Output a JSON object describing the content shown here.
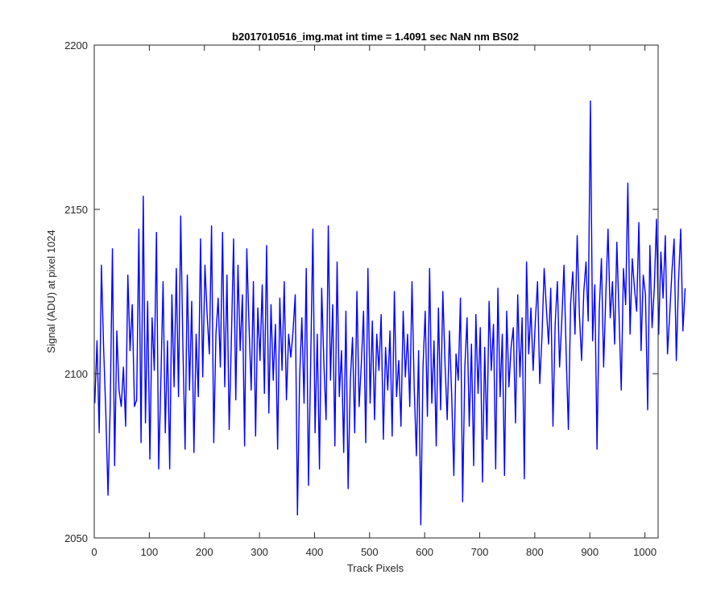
{
  "chart_data": {
    "type": "line",
    "title": "b2017010516_img.mat int time = 1.4091 sec  NaN nm BS02",
    "xlabel": "Track Pixels",
    "ylabel": "Signal (ADU) at pixel 1024",
    "xlim": [
      0,
      1024
    ],
    "ylim": [
      2050,
      2200
    ],
    "xticks": [
      0,
      100,
      200,
      300,
      400,
      500,
      600,
      700,
      800,
      900,
      1000
    ],
    "yticks": [
      2050,
      2100,
      2150,
      2200
    ],
    "xtick_labels": [
      "0",
      "100",
      "200",
      "300",
      "400",
      "500",
      "600",
      "700",
      "800",
      "900",
      "1000"
    ],
    "ytick_labels": [
      "2050",
      "2100",
      "2150",
      "2200"
    ],
    "grid": false,
    "line_color": "#0000ff",
    "series": [
      {
        "x_start": 1,
        "x_step": 4,
        "values": [
          2091,
          2110,
          2082,
          2133,
          2108,
          2088,
          2063,
          2090,
          2138,
          2072,
          2113,
          2095,
          2090,
          2102,
          2084,
          2130,
          2107,
          2121,
          2090,
          2092,
          2144,
          2079,
          2154,
          2085,
          2122,
          2074,
          2117,
          2101,
          2143,
          2071,
          2098,
          2128,
          2082,
          2110,
          2071,
          2124,
          2096,
          2132,
          2093,
          2148,
          2108,
          2077,
          2130,
          2095,
          2122,
          2076,
          2112,
          2093,
          2141,
          2099,
          2133,
          2118,
          2106,
          2145,
          2079,
          2112,
          2123,
          2102,
          2143,
          2096,
          2130,
          2083,
          2110,
          2141,
          2092,
          2133,
          2107,
          2124,
          2078,
          2138,
          2115,
          2095,
          2128,
          2081,
          2120,
          2104,
          2127,
          2094,
          2139,
          2088,
          2121,
          2098,
          2115,
          2077,
          2123,
          2101,
          2128,
          2092,
          2112,
          2105,
          2113,
          2124,
          2057,
          2099,
          2117,
          2091,
          2132,
          2066,
          2103,
          2144,
          2082,
          2112,
          2071,
          2126,
          2103,
          2086,
          2145,
          2098,
          2121,
          2078,
          2134,
          2093,
          2107,
          2076,
          2119,
          2065,
          2098,
          2111,
          2082,
          2125,
          2090,
          2103,
          2119,
          2079,
          2132,
          2091,
          2116,
          2086,
          2112,
          2101,
          2118,
          2080,
          2108,
          2095,
          2113,
          2081,
          2125,
          2093,
          2104,
          2084,
          2119,
          2099,
          2112,
          2090,
          2128,
          2096,
          2075,
          2107,
          2054,
          2102,
          2119,
          2087,
          2132,
          2091,
          2110,
          2078,
          2120,
          2089,
          2125,
          2103,
          2086,
          2113,
          2094,
          2069,
          2106,
          2098,
          2123,
          2061,
          2102,
          2117,
          2084,
          2109,
          2072,
          2118,
          2094,
          2114,
          2067,
          2108,
          2080,
          2122,
          2101,
          2115,
          2071,
          2126,
          2093,
          2112,
          2069,
          2119,
          2096,
          2108,
          2114,
          2085,
          2124,
          2099,
          2117,
          2068,
          2134,
          2106,
          2120,
          2101,
          2116,
          2128,
          2097,
          2111,
          2132,
          2120,
          2109,
          2126,
          2084,
          2115,
          2128,
          2102,
          2116,
          2133,
          2106,
          2083,
          2121,
          2131,
          2112,
          2142,
          2118,
          2104,
          2125,
          2134,
          2116,
          2183,
          2110,
          2127,
          2077,
          2119,
          2135,
          2102,
          2124,
          2144,
          2117,
          2128,
          2109,
          2140,
          2118,
          2095,
          2132,
          2121,
          2158,
          2112,
          2135,
          2126,
          2119,
          2146,
          2107,
          2130,
          2124,
          2089,
          2139,
          2114,
          2126,
          2147,
          2112,
          2137,
          2123,
          2142,
          2106,
          2118,
          2131,
          2141,
          2104,
          2128,
          2144,
          2113,
          2126
        ]
      }
    ]
  }
}
